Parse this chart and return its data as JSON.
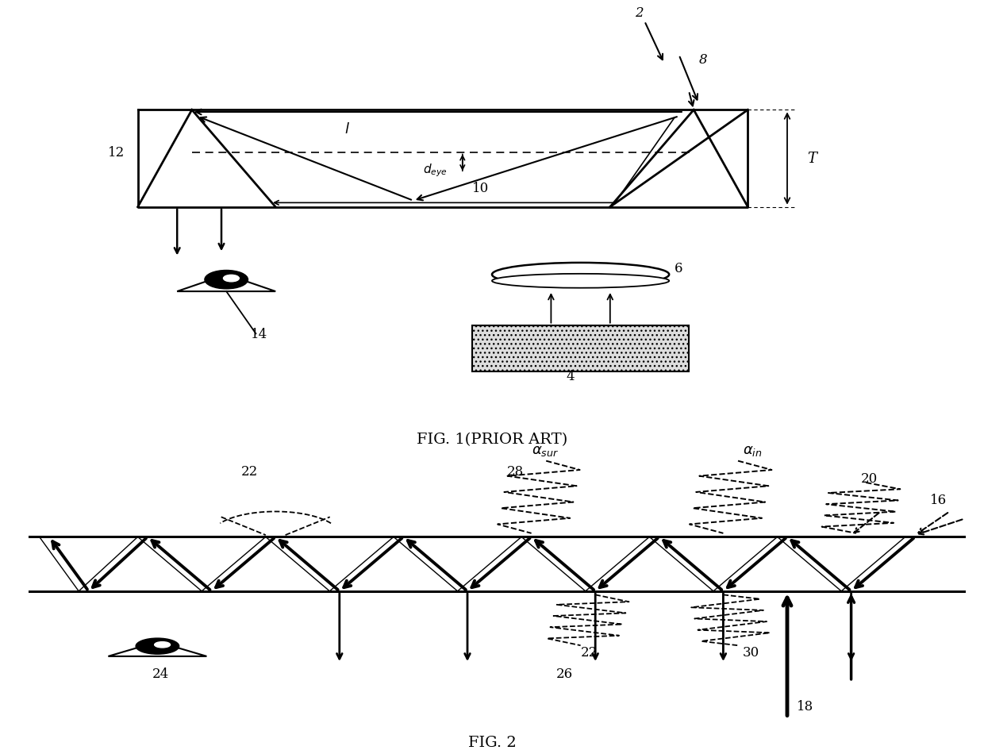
{
  "fig_title1": "FIG. 1(PRIOR ART)",
  "fig_title2": "FIG. 2",
  "bg_color": "#ffffff",
  "line_color": "#000000"
}
